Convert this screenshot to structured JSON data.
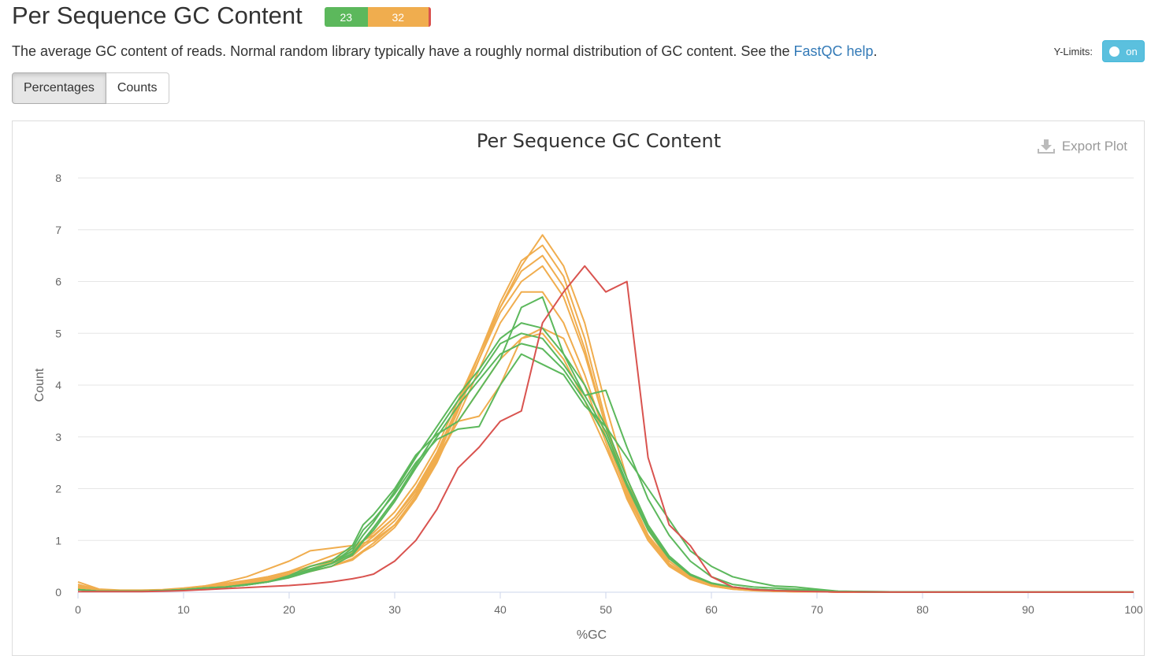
{
  "header": {
    "title": "Per Sequence GC Content",
    "status_pass": "23",
    "status_warn": "32"
  },
  "description": {
    "text": "The average GC content of reads. Normal random library typically have a roughly normal distribution of GC content. See the ",
    "link": "FastQC help",
    "end": "."
  },
  "ylimits": {
    "label": "Y-Limits:",
    "toggle": "on"
  },
  "buttons": {
    "percentages": "Percentages",
    "counts": "Counts"
  },
  "export": {
    "label": "Export Plot",
    "icon": "download-icon"
  },
  "colors": {
    "pass": "#5cb85c",
    "warn": "#f0ad4e",
    "fail": "#d9534f",
    "grid": "#e6e6e6",
    "axis": "#ccd6eb"
  },
  "chart_data": {
    "type": "line",
    "title": "Per Sequence GC Content",
    "xlabel": "%GC",
    "ylabel": "Count",
    "xlim": [
      0,
      100
    ],
    "ylim": [
      0,
      8
    ],
    "x_ticks": [
      0,
      10,
      20,
      30,
      40,
      50,
      60,
      70,
      80,
      90,
      100
    ],
    "y_ticks": [
      0,
      1,
      2,
      3,
      4,
      5,
      6,
      7,
      8
    ],
    "grid": true,
    "legend": "none",
    "x": [
      0,
      2,
      4,
      6,
      8,
      10,
      12,
      14,
      16,
      18,
      20,
      22,
      24,
      26,
      27,
      28,
      30,
      32,
      34,
      36,
      38,
      40,
      42,
      44,
      46,
      48,
      50,
      52,
      54,
      56,
      58,
      60,
      62,
      64,
      66,
      68,
      70,
      72,
      75,
      80,
      90,
      100
    ],
    "series": [
      {
        "status": "warn",
        "values": [
          0.2,
          0.06,
          0.04,
          0.04,
          0.05,
          0.08,
          0.12,
          0.17,
          0.23,
          0.3,
          0.38,
          0.5,
          0.62,
          0.78,
          1.0,
          1.15,
          1.55,
          2.1,
          2.8,
          3.7,
          4.6,
          5.5,
          6.3,
          6.9,
          6.3,
          5.2,
          3.6,
          2.2,
          1.2,
          0.6,
          0.3,
          0.15,
          0.08,
          0.05,
          0.03,
          0.02,
          0.01,
          0.01,
          0.005,
          0.003,
          0.002,
          0.001
        ]
      },
      {
        "status": "warn",
        "values": [
          0.15,
          0.05,
          0.03,
          0.03,
          0.04,
          0.06,
          0.1,
          0.14,
          0.2,
          0.27,
          0.35,
          0.45,
          0.58,
          0.72,
          0.92,
          1.08,
          1.45,
          2.0,
          2.7,
          3.6,
          4.6,
          5.6,
          6.4,
          6.7,
          6.1,
          4.9,
          3.3,
          2.0,
          1.1,
          0.55,
          0.27,
          0.13,
          0.07,
          0.04,
          0.02,
          0.01,
          0.01,
          0.005,
          0.003,
          0.002,
          0.001,
          0.001
        ]
      },
      {
        "status": "warn",
        "values": [
          0.1,
          0.04,
          0.03,
          0.03,
          0.04,
          0.06,
          0.09,
          0.13,
          0.18,
          0.25,
          0.33,
          0.43,
          0.55,
          0.7,
          0.88,
          1.02,
          1.38,
          1.9,
          2.6,
          3.5,
          4.5,
          5.5,
          6.2,
          6.5,
          5.9,
          4.7,
          3.2,
          1.9,
          1.05,
          0.52,
          0.25,
          0.12,
          0.06,
          0.03,
          0.02,
          0.01,
          0.01,
          0.005,
          0.003,
          0.002,
          0.001,
          0.001
        ]
      },
      {
        "status": "warn",
        "values": [
          0.12,
          0.05,
          0.03,
          0.03,
          0.04,
          0.06,
          0.1,
          0.15,
          0.22,
          0.3,
          0.4,
          0.55,
          0.7,
          0.85,
          1.0,
          1.1,
          1.45,
          1.95,
          2.65,
          3.55,
          4.5,
          5.4,
          6.0,
          6.3,
          5.7,
          4.6,
          3.2,
          1.95,
          1.1,
          0.55,
          0.27,
          0.13,
          0.07,
          0.04,
          0.02,
          0.01,
          0.01,
          0.005,
          0.003,
          0.002,
          0.001,
          0.001
        ]
      },
      {
        "status": "warn",
        "values": [
          0.1,
          0.04,
          0.03,
          0.03,
          0.04,
          0.07,
          0.12,
          0.2,
          0.3,
          0.45,
          0.6,
          0.8,
          0.85,
          0.9,
          0.95,
          1.0,
          1.3,
          1.8,
          2.5,
          3.4,
          4.3,
          5.2,
          5.8,
          5.8,
          5.2,
          4.2,
          3.0,
          1.9,
          1.1,
          0.6,
          0.3,
          0.15,
          0.08,
          0.04,
          0.02,
          0.01,
          0.01,
          0.005,
          0.003,
          0.002,
          0.001,
          0.001
        ]
      },
      {
        "status": "warn",
        "values": [
          0.08,
          0.03,
          0.02,
          0.02,
          0.03,
          0.05,
          0.08,
          0.12,
          0.17,
          0.22,
          0.3,
          0.4,
          0.5,
          0.65,
          0.8,
          0.95,
          1.3,
          1.85,
          2.6,
          3.3,
          3.4,
          4.0,
          4.9,
          5.1,
          4.9,
          4.0,
          2.9,
          1.8,
          1.0,
          0.5,
          0.25,
          0.12,
          0.06,
          0.03,
          0.02,
          0.01,
          0.01,
          0.005,
          0.003,
          0.002,
          0.001,
          0.001
        ]
      },
      {
        "status": "warn",
        "values": [
          0.07,
          0.03,
          0.02,
          0.02,
          0.03,
          0.05,
          0.08,
          0.12,
          0.17,
          0.22,
          0.3,
          0.4,
          0.5,
          0.62,
          0.78,
          0.9,
          1.25,
          1.8,
          2.55,
          3.3,
          3.9,
          4.5,
          4.9,
          5.0,
          4.5,
          3.7,
          2.8,
          1.85,
          1.1,
          0.55,
          0.28,
          0.14,
          0.07,
          0.04,
          0.02,
          0.01,
          0.01,
          0.005,
          0.003,
          0.002,
          0.001,
          0.001
        ]
      },
      {
        "status": "pass",
        "values": [
          0.05,
          0.02,
          0.02,
          0.02,
          0.03,
          0.05,
          0.08,
          0.1,
          0.15,
          0.2,
          0.3,
          0.45,
          0.55,
          0.8,
          1.1,
          1.35,
          1.95,
          2.6,
          3.2,
          3.8,
          4.3,
          4.9,
          5.2,
          5.1,
          4.6,
          4.0,
          3.2,
          2.2,
          1.3,
          0.7,
          0.35,
          0.18,
          0.1,
          0.06,
          0.04,
          0.03,
          0.02,
          0.01,
          0.005,
          0.003,
          0.002,
          0.001
        ]
      },
      {
        "status": "pass",
        "values": [
          0.05,
          0.02,
          0.02,
          0.02,
          0.03,
          0.05,
          0.08,
          0.1,
          0.14,
          0.2,
          0.3,
          0.42,
          0.55,
          0.75,
          1.0,
          1.25,
          1.8,
          2.45,
          3.1,
          3.7,
          4.2,
          4.8,
          5.0,
          4.9,
          4.4,
          3.8,
          3.1,
          2.1,
          1.25,
          0.68,
          0.34,
          0.17,
          0.1,
          0.06,
          0.04,
          0.03,
          0.02,
          0.01,
          0.005,
          0.003,
          0.002,
          0.001
        ]
      },
      {
        "status": "pass",
        "values": [
          0.05,
          0.02,
          0.02,
          0.02,
          0.03,
          0.05,
          0.08,
          0.1,
          0.14,
          0.2,
          0.28,
          0.4,
          0.5,
          0.72,
          0.98,
          1.2,
          1.75,
          2.4,
          3.0,
          3.6,
          4.1,
          4.6,
          4.8,
          4.7,
          4.3,
          3.7,
          3.0,
          2.05,
          1.2,
          0.65,
          0.33,
          0.17,
          0.1,
          0.06,
          0.04,
          0.03,
          0.02,
          0.01,
          0.005,
          0.003,
          0.002,
          0.001
        ]
      },
      {
        "status": "pass",
        "values": [
          0.05,
          0.02,
          0.02,
          0.02,
          0.03,
          0.05,
          0.08,
          0.1,
          0.15,
          0.2,
          0.32,
          0.5,
          0.6,
          0.9,
          1.3,
          1.5,
          2.0,
          2.65,
          3.05,
          3.3,
          3.9,
          4.5,
          5.5,
          5.7,
          4.6,
          3.8,
          3.9,
          2.8,
          1.8,
          1.1,
          0.6,
          0.3,
          0.15,
          0.1,
          0.08,
          0.06,
          0.04,
          0.02,
          0.01,
          0.003,
          0.002,
          0.001
        ]
      },
      {
        "status": "pass",
        "values": [
          0.05,
          0.02,
          0.02,
          0.02,
          0.03,
          0.05,
          0.08,
          0.1,
          0.14,
          0.2,
          0.3,
          0.45,
          0.55,
          0.85,
          1.2,
          1.4,
          1.9,
          2.5,
          2.95,
          3.15,
          3.2,
          4.0,
          4.6,
          4.4,
          4.2,
          3.6,
          3.2,
          2.6,
          2.0,
          1.4,
          0.8,
          0.5,
          0.3,
          0.2,
          0.12,
          0.1,
          0.06,
          0.02,
          0.01,
          0.003,
          0.002,
          0.001
        ]
      },
      {
        "status": "fail",
        "values": [
          0.01,
          0.01,
          0.01,
          0.01,
          0.02,
          0.03,
          0.05,
          0.07,
          0.09,
          0.11,
          0.13,
          0.16,
          0.2,
          0.26,
          0.3,
          0.35,
          0.6,
          1.0,
          1.6,
          2.4,
          2.8,
          3.3,
          3.5,
          5.2,
          5.8,
          6.3,
          5.8,
          6.0,
          2.6,
          1.3,
          0.9,
          0.3,
          0.1,
          0.05,
          0.03,
          0.02,
          0.01,
          0.005,
          0.003,
          0.002,
          0.001,
          0.001
        ]
      }
    ]
  }
}
